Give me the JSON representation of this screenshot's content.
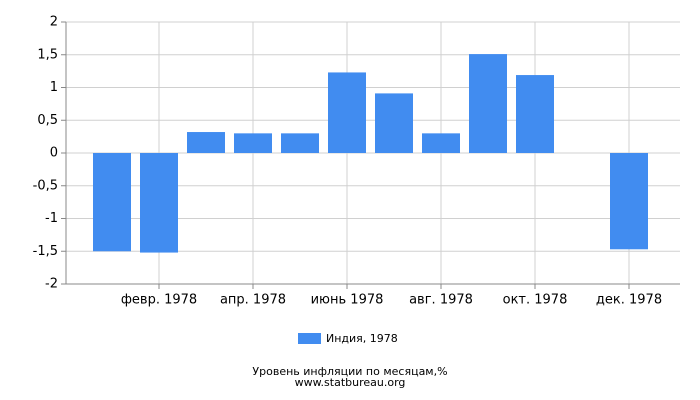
{
  "chart_data": {
    "type": "bar",
    "categories": [
      null,
      "февр. 1978",
      null,
      "апр. 1978",
      null,
      "июнь 1978",
      null,
      "авг. 1978",
      null,
      "окт. 1978",
      null,
      "дек. 1978"
    ],
    "series": [
      {
        "name": "Индия, 1978",
        "color": "#418cf0",
        "values": [
          -1.5,
          -1.52,
          0.32,
          0.3,
          0.3,
          1.23,
          0.91,
          0.3,
          1.51,
          1.19,
          0,
          -1.47
        ]
      }
    ],
    "ylim": [
      -2,
      2
    ],
    "yticks": [
      -2,
      {
        "value": -1.5,
        "label": "-1,5"
      },
      -1,
      {
        "value": -0.5,
        "label": "-0,5"
      },
      0,
      {
        "value": 0.5,
        "label": "0,5"
      },
      1,
      {
        "value": 1.5,
        "label": "1,5"
      },
      2
    ],
    "grid": true,
    "legend": "bottom",
    "caption": [
      "Уровень инфляции по месяцам,%",
      "www.statbureau.org"
    ]
  }
}
